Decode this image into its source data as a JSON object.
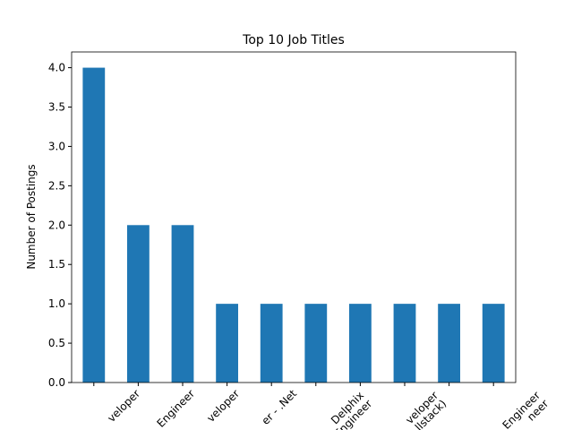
{
  "chart_data": {
    "type": "bar",
    "title": "Top 10 Job Titles",
    "y_label": "Number of Postings",
    "categories": [
      [
        "veloper"
      ],
      [
        "Engineer"
      ],
      [
        "veloper"
      ],
      [
        "er - .Net"
      ],
      [
        "Delphix",
        "Engineer"
      ],
      [
        "veloper",
        "llstack)"
      ],
      null,
      null,
      null,
      [
        "Engineer",
        "neer"
      ]
    ],
    "values": [
      4,
      2,
      2,
      1,
      1,
      1,
      1,
      1,
      1,
      1
    ],
    "color": "#1f77b4",
    "ylim": [
      0,
      4.2
    ],
    "yticks": [
      {
        "value": 0,
        "label": "0.0"
      },
      {
        "value": 0.5,
        "label": "0.5"
      },
      {
        "value": 1,
        "label": "1.0"
      },
      {
        "value": 1.5,
        "label": "1.5"
      },
      {
        "value": 2,
        "label": "2.0"
      },
      {
        "value": 2.5,
        "label": "2.5"
      },
      {
        "value": 3,
        "label": "3.0"
      },
      {
        "value": 3.5,
        "label": "3.5"
      },
      {
        "value": 4,
        "label": "4.0"
      }
    ],
    "grid": false
  }
}
